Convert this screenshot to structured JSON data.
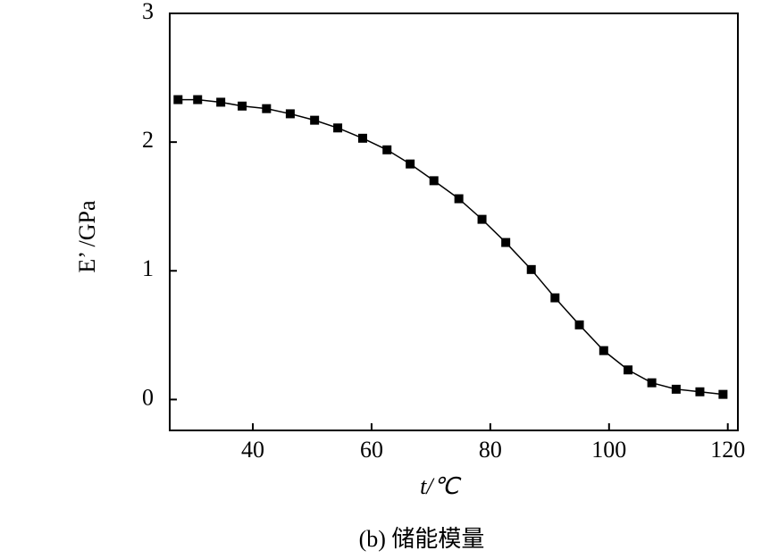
{
  "chart_data": {
    "type": "line",
    "x_label": "t/℃",
    "y_label": "E’ /GPa",
    "caption": "(b)  储能模量",
    "x": [
      27.4,
      30.7,
      34.6,
      38.2,
      42.3,
      46.3,
      50.4,
      54.3,
      58.5,
      62.6,
      66.5,
      70.5,
      74.7,
      78.6,
      82.6,
      86.9,
      90.9,
      95.0,
      99.1,
      103.2,
      107.2,
      111.3,
      115.3,
      119.2
    ],
    "series": [
      {
        "color": "#000000",
        "values": [
          2.33,
          2.33,
          2.31,
          2.28,
          2.26,
          2.22,
          2.17,
          2.11,
          2.03,
          1.94,
          1.83,
          1.7,
          1.56,
          1.4,
          1.22,
          1.01,
          0.79,
          0.58,
          0.38,
          0.23,
          0.13,
          0.08,
          0.06,
          0.04
        ]
      }
    ],
    "xlim": [
      26,
      121.7
    ],
    "ylim": [
      -0.24,
      3
    ],
    "xticks": [
      40,
      60,
      80,
      100,
      120
    ],
    "yticks": [
      0,
      1,
      2,
      3
    ],
    "grid": false
  }
}
